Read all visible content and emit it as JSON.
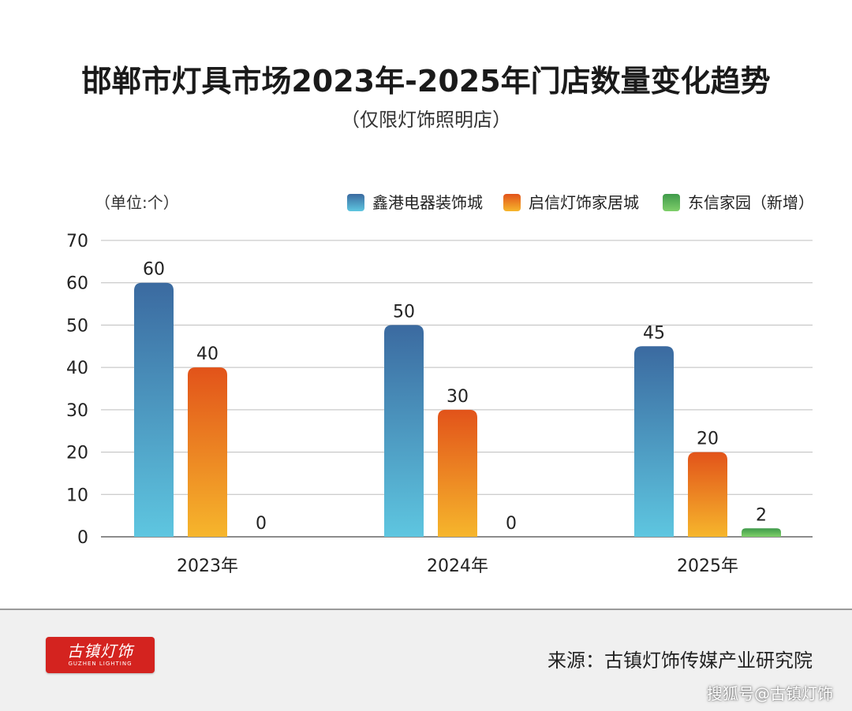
{
  "title": "邯郸市灯具市场2023年-2025年门店数量变化趋势",
  "subtitle": "（仅限灯饰照明店）",
  "chart_data": {
    "type": "bar",
    "unit_label": "（单位:个）",
    "categories": [
      "2023年",
      "2024年",
      "2025年"
    ],
    "series": [
      {
        "name": "鑫港电器装饰城",
        "values": [
          60,
          50,
          45
        ],
        "color_top": "#3b6aa0",
        "color_bottom": "#5ec6e0"
      },
      {
        "name": "启信灯饰家居城",
        "values": [
          40,
          30,
          20
        ],
        "color_top": "#e2531a",
        "color_bottom": "#f6b62c"
      },
      {
        "name": "东信家园（新增）",
        "values": [
          0,
          0,
          2
        ],
        "color_top": "#3f9a4a",
        "color_bottom": "#7fcf6a"
      }
    ],
    "ylim": [
      0,
      70
    ],
    "yticks": [
      0,
      10,
      20,
      30,
      40,
      50,
      60,
      70
    ],
    "grid": true,
    "legend_position": "top-right",
    "data_labels": true
  },
  "footer": {
    "logo_text": "古镇灯饰",
    "logo_subtext": "GUZHEN LIGHTING",
    "source": "来源：古镇灯饰传媒产业研究院",
    "watermark": "搜狐号@古镇灯饰"
  }
}
